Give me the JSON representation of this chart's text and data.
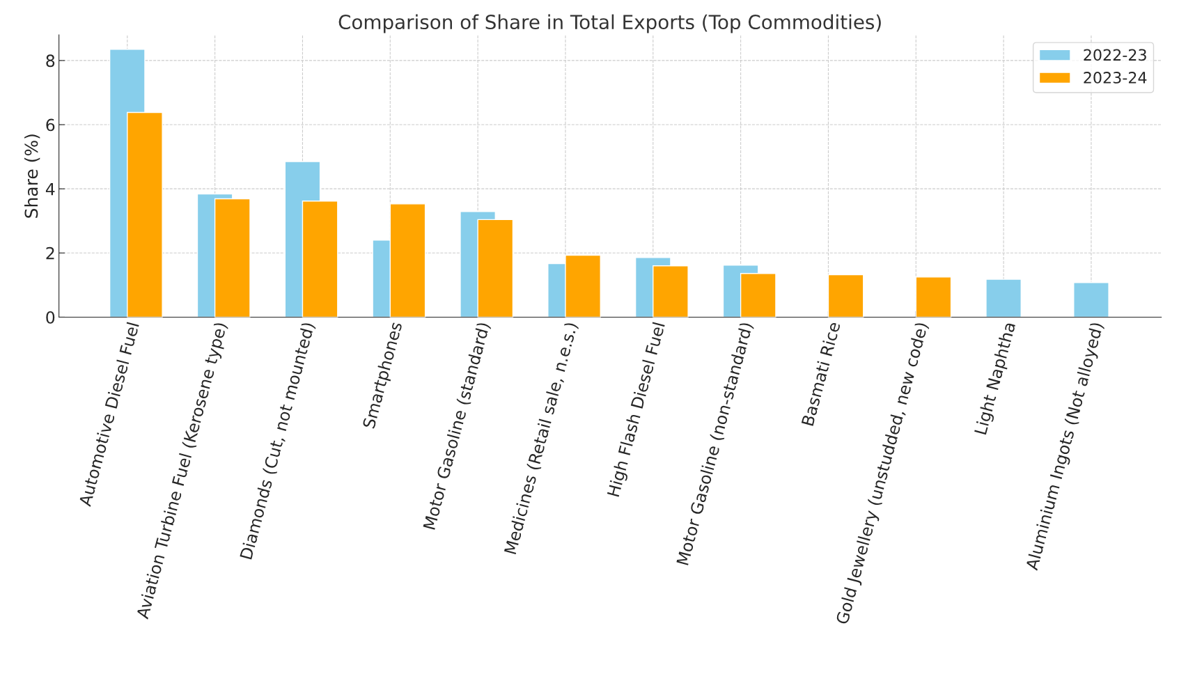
{
  "chart_data": {
    "type": "bar",
    "title": "Comparison of Share in Total Exports (Top Commodities)",
    "ylabel": "Share (%)",
    "categories": [
      "Automotive Diesel Fuel",
      "Aviation Turbine Fuel (Kerosene type)",
      "Diamonds (Cut, not mounted)",
      "Smartphones",
      "Motor Gasoline (standard)",
      "Medicines (Retail sale, n.e.s.)",
      "High Flash Diesel Fuel",
      "Motor Gasoline (non-standard)",
      "Basmati Rice",
      "Gold Jewellery (unstudded, new code)",
      "Light Naphtha",
      "Aluminium Ingots (Not alloyed)"
    ],
    "series": [
      {
        "name": "2022-23",
        "color": "#87ceeb",
        "values": [
          8.35,
          3.84,
          4.85,
          2.4,
          3.29,
          1.67,
          1.86,
          1.62,
          null,
          null,
          1.18,
          1.08
        ]
      },
      {
        "name": "2023-24",
        "color": "#ffa500",
        "values": [
          6.38,
          3.69,
          3.62,
          3.53,
          3.04,
          1.93,
          1.6,
          1.36,
          1.32,
          1.25,
          null,
          null
        ]
      }
    ],
    "ylim": [
      0,
      8.8
    ],
    "yticks": [
      0,
      2,
      4,
      6,
      8
    ],
    "grid": true,
    "legend": "top right"
  }
}
